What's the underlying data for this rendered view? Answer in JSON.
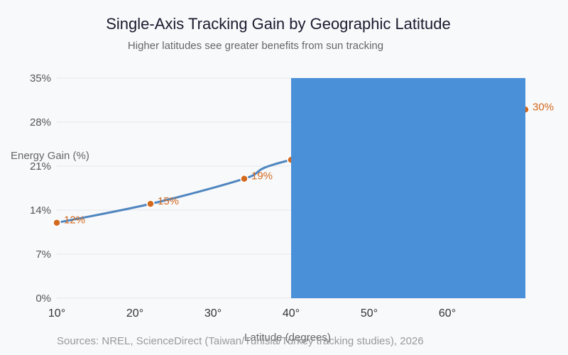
{
  "chart_data": {
    "type": "line",
    "title": "Single-Axis Tracking Gain by Geographic Latitude",
    "subtitle": "Higher latitudes see greater benefits from sun tracking",
    "xlabel": "Latitude (degrees)",
    "ylabel": "Energy Gain (%)",
    "xlim": [
      10,
      70
    ],
    "ylim": [
      0,
      35
    ],
    "x_ticks": [
      "10°",
      "20°",
      "30°",
      "40°",
      "50°",
      "60°"
    ],
    "y_ticks": [
      "0%",
      "7%",
      "14%",
      "21%",
      "28%",
      "35%"
    ],
    "grid": true,
    "series": [
      {
        "x": [
          10,
          22,
          34,
          40,
          70
        ],
        "y": [
          12,
          15,
          19,
          22,
          30
        ],
        "labels": [
          "12%",
          "15%",
          "19%",
          "",
          "30%"
        ]
      }
    ],
    "overlay_rect": {
      "x0": 40,
      "x1": 70,
      "y0": 0,
      "y1": 35,
      "color": "#4a90d9"
    },
    "line_color": "#4f86bf",
    "marker_color": "#d2691e",
    "source": "Sources: NREL, ScienceDirect (Taiwan/Tunisia/Turkey tracking studies), 2026"
  }
}
